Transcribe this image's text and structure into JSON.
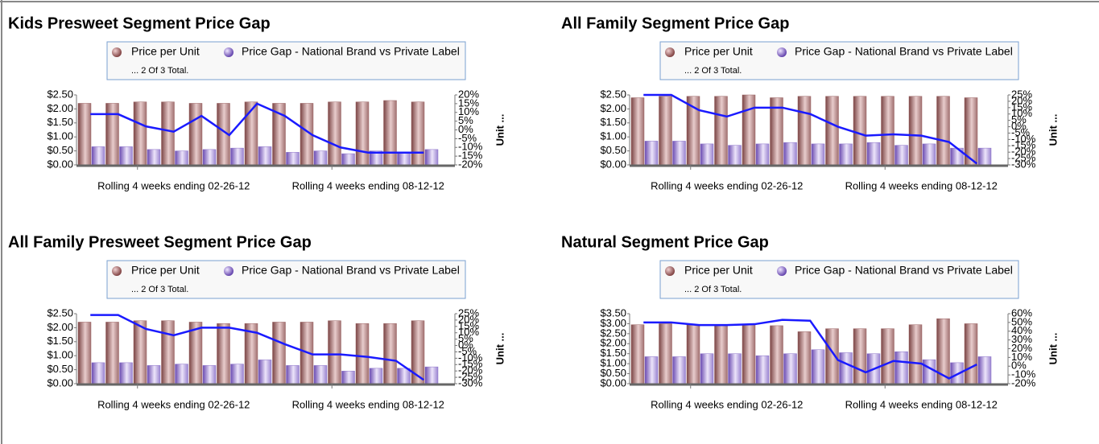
{
  "chart_data": [
    {
      "type": "bar",
      "title": "Kids Presweet Segment Price Gap",
      "legend_note": "... 2 Of 3 Total.",
      "y2label": "Unit ...",
      "categories": [
        null,
        null,
        null,
        "Rolling 4 weeks ending 02-26-12",
        null,
        null,
        null,
        null,
        null,
        null,
        "Rolling 4 weeks ending 08-12-12",
        null,
        null
      ],
      "series": [
        {
          "name": "Price per Unit",
          "color": "#9c6464",
          "values": [
            2.2,
            2.2,
            2.25,
            2.25,
            2.2,
            2.2,
            2.25,
            2.2,
            2.2,
            2.25,
            2.25,
            2.3,
            2.25
          ]
        },
        {
          "name": "Price Gap - National Brand vs Private Label",
          "color": "#8a70c8",
          "values": [
            0.65,
            0.65,
            0.55,
            0.5,
            0.55,
            0.6,
            0.65,
            0.45,
            0.5,
            0.4,
            0.5,
            0.45,
            0.55
          ]
        },
        {
          "type": "line",
          "axis": "y2",
          "color": "#1a1aff",
          "values": [
            9,
            9,
            2,
            -1,
            8,
            -3,
            15,
            8,
            -3,
            -10,
            -13,
            -13,
            -13
          ]
        }
      ],
      "ylim": [
        0,
        2.5
      ],
      "yticks": [
        {
          "value": 0,
          "label": "$0.00"
        },
        {
          "value": 0.5,
          "label": "$0.50"
        },
        {
          "value": 1,
          "label": "$1.00"
        },
        {
          "value": 1.5,
          "label": "$1.50"
        },
        {
          "value": 2,
          "label": "$2.00"
        },
        {
          "value": 2.5,
          "label": "$2.50"
        }
      ],
      "y2lim": [
        -20,
        20
      ],
      "y2ticks": [
        {
          "value": -20,
          "label": "-20%"
        },
        {
          "value": -15,
          "label": "-15%"
        },
        {
          "value": -10,
          "label": "-10%"
        },
        {
          "value": -5,
          "label": "-5%"
        },
        {
          "value": 0,
          "label": "0%"
        },
        {
          "value": 5,
          "label": "5%"
        },
        {
          "value": 10,
          "label": "10%"
        },
        {
          "value": 15,
          "label": "15%"
        },
        {
          "value": 20,
          "label": "20%"
        }
      ]
    },
    {
      "type": "bar",
      "title": "All Family Segment Price Gap",
      "legend_note": "... 2 Of 3 Total.",
      "y2label": "Unit ...",
      "categories": [
        null,
        null,
        null,
        "Rolling 4 weeks ending 02-26-12",
        null,
        null,
        null,
        null,
        null,
        null,
        "Rolling 4 weeks ending 08-12-12",
        null,
        null
      ],
      "series": [
        {
          "name": "Price per Unit",
          "color": "#9c6464",
          "values": [
            2.4,
            2.45,
            2.45,
            2.45,
            2.5,
            2.4,
            2.45,
            2.45,
            2.45,
            2.45,
            2.45,
            2.45,
            2.4
          ]
        },
        {
          "name": "Price Gap - National Brand vs Private Label",
          "color": "#8a70c8",
          "values": [
            0.85,
            0.85,
            0.75,
            0.7,
            0.75,
            0.8,
            0.75,
            0.75,
            0.8,
            0.7,
            0.75,
            0.6,
            0.6
          ]
        },
        {
          "type": "line",
          "axis": "y2",
          "color": "#1a1aff",
          "values": [
            25,
            25,
            13,
            8,
            15,
            15,
            10,
            0,
            -7,
            -6,
            -7,
            -12,
            -29
          ]
        }
      ],
      "ylim": [
        0,
        2.5
      ],
      "yticks": [
        {
          "value": 0,
          "label": "$0.00"
        },
        {
          "value": 0.5,
          "label": "$0.50"
        },
        {
          "value": 1,
          "label": "$1.00"
        },
        {
          "value": 1.5,
          "label": "$1.50"
        },
        {
          "value": 2,
          "label": "$2.00"
        },
        {
          "value": 2.5,
          "label": "$2.50"
        }
      ],
      "y2lim": [
        -30,
        25
      ],
      "y2ticks": [
        {
          "value": -30,
          "label": "-30%"
        },
        {
          "value": -25,
          "label": "-25%"
        },
        {
          "value": -20,
          "label": "-20%"
        },
        {
          "value": -15,
          "label": "-15%"
        },
        {
          "value": -10,
          "label": "-10%"
        },
        {
          "value": -5,
          "label": "-5%"
        },
        {
          "value": 0,
          "label": "0%"
        },
        {
          "value": 5,
          "label": "5%"
        },
        {
          "value": 10,
          "label": "10%"
        },
        {
          "value": 15,
          "label": "15%"
        },
        {
          "value": 20,
          "label": "20%"
        },
        {
          "value": 25,
          "label": "25%"
        }
      ]
    },
    {
      "type": "bar",
      "title": "All Family Presweet Segment Price Gap",
      "legend_note": "... 2 Of 3 Total.",
      "y2label": "Unit ...",
      "categories": [
        null,
        null,
        null,
        "Rolling 4 weeks ending 02-26-12",
        null,
        null,
        null,
        null,
        null,
        null,
        "Rolling 4 weeks ending 08-12-12",
        null,
        null
      ],
      "series": [
        {
          "name": "Price per Unit",
          "color": "#9c6464",
          "values": [
            2.2,
            2.2,
            2.25,
            2.25,
            2.2,
            2.15,
            2.15,
            2.2,
            2.2,
            2.25,
            2.15,
            2.15,
            2.25
          ]
        },
        {
          "name": "Price Gap - National Brand vs Private Label",
          "color": "#8a70c8",
          "values": [
            0.75,
            0.75,
            0.65,
            0.7,
            0.65,
            0.7,
            0.85,
            0.65,
            0.65,
            0.45,
            0.55,
            0.55,
            0.6
          ]
        },
        {
          "type": "line",
          "axis": "y2",
          "color": "#1a1aff",
          "values": [
            24,
            24,
            13,
            8,
            14,
            14,
            10,
            1,
            -7,
            -7,
            -9,
            -12,
            -27
          ]
        }
      ],
      "ylim": [
        0,
        2.5
      ],
      "yticks": [
        {
          "value": 0,
          "label": "$0.00"
        },
        {
          "value": 0.5,
          "label": "$0.50"
        },
        {
          "value": 1,
          "label": "$1.00"
        },
        {
          "value": 1.5,
          "label": "$1.50"
        },
        {
          "value": 2,
          "label": "$2.00"
        },
        {
          "value": 2.5,
          "label": "$2.50"
        }
      ],
      "y2lim": [
        -30,
        25
      ],
      "y2ticks": [
        {
          "value": -30,
          "label": "-30%"
        },
        {
          "value": -25,
          "label": "-25%"
        },
        {
          "value": -20,
          "label": "-20%"
        },
        {
          "value": -15,
          "label": "-15%"
        },
        {
          "value": -10,
          "label": "-10%"
        },
        {
          "value": -5,
          "label": "-5%"
        },
        {
          "value": 0,
          "label": "0%"
        },
        {
          "value": 5,
          "label": "5%"
        },
        {
          "value": 10,
          "label": "10%"
        },
        {
          "value": 15,
          "label": "15%"
        },
        {
          "value": 20,
          "label": "20%"
        },
        {
          "value": 25,
          "label": "25%"
        }
      ]
    },
    {
      "type": "bar",
      "title": "Natural Segment Price Gap",
      "legend_note": "... 2 Of 3 Total.",
      "y2label": "Unit ...",
      "categories": [
        null,
        null,
        null,
        "Rolling 4 weeks ending 02-26-12",
        null,
        null,
        null,
        null,
        null,
        null,
        "Rolling 4 weeks ending 08-12-12",
        null,
        null
      ],
      "series": [
        {
          "name": "Price per Unit",
          "color": "#9c6464",
          "values": [
            2.95,
            3.0,
            2.95,
            2.95,
            2.95,
            2.9,
            2.6,
            2.75,
            2.75,
            2.75,
            2.95,
            3.25,
            3.0
          ]
        },
        {
          "name": "Price Gap - National Brand vs Private Label",
          "color": "#8a70c8",
          "values": [
            1.35,
            1.35,
            1.5,
            1.5,
            1.4,
            1.5,
            1.7,
            1.55,
            1.5,
            1.6,
            1.2,
            1.05,
            1.35
          ]
        },
        {
          "type": "line",
          "axis": "y2",
          "color": "#1a1aff",
          "values": [
            50,
            50,
            47,
            47,
            48,
            53,
            52,
            7,
            -7,
            6,
            3,
            -14,
            2
          ]
        }
      ],
      "ylim": [
        0,
        3.5
      ],
      "yticks": [
        {
          "value": 0,
          "label": "$0.00"
        },
        {
          "value": 0.5,
          "label": "$0.50"
        },
        {
          "value": 1,
          "label": "$1.00"
        },
        {
          "value": 1.5,
          "label": "$1.50"
        },
        {
          "value": 2,
          "label": "$2.00"
        },
        {
          "value": 2.5,
          "label": "$2.50"
        },
        {
          "value": 3,
          "label": "$3.00"
        },
        {
          "value": 3.5,
          "label": "$3.50"
        }
      ],
      "y2lim": [
        -20,
        60
      ],
      "y2ticks": [
        {
          "value": -20,
          "label": "-20%"
        },
        {
          "value": -10,
          "label": "-10%"
        },
        {
          "value": 0,
          "label": "0%"
        },
        {
          "value": 10,
          "label": "10%"
        },
        {
          "value": 20,
          "label": "20%"
        },
        {
          "value": 30,
          "label": "30%"
        },
        {
          "value": 40,
          "label": "40%"
        },
        {
          "value": 50,
          "label": "50%"
        },
        {
          "value": 60,
          "label": "60%"
        }
      ]
    }
  ]
}
